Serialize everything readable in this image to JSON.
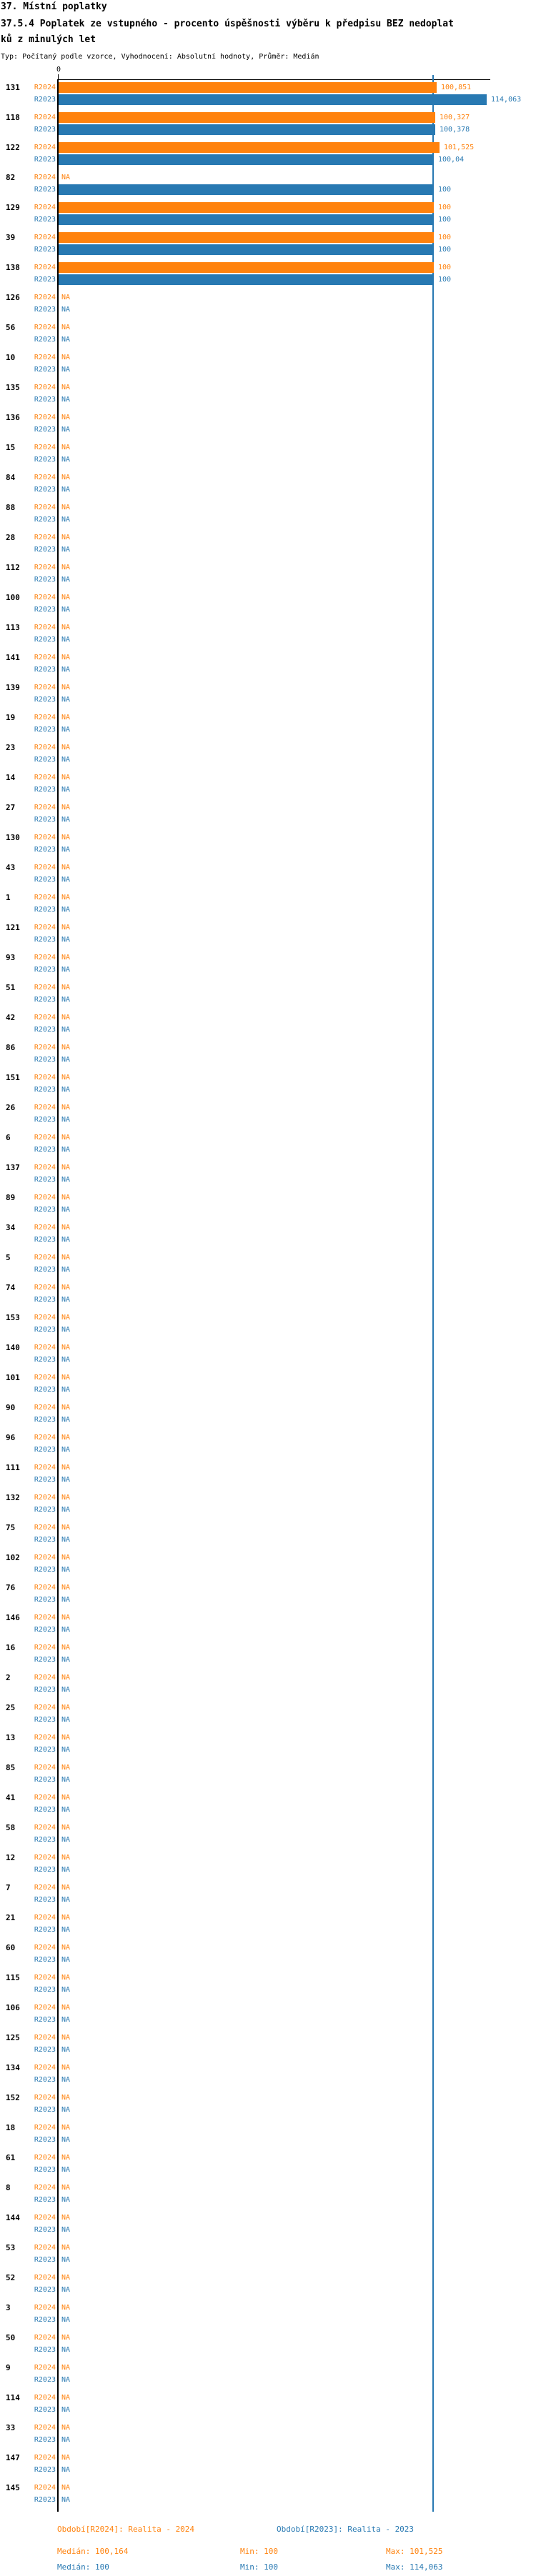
{
  "header": {
    "title_line1": "37. Místní poplatky",
    "title_line2": "37.5.4 Poplatek ze vstupného - procento úspěšnosti výběru k předpisu BEZ nedoplat",
    "title_line3": "ků z minulých let",
    "subtitle": "Typ: Počítaný podle vzorce, Vyhodnocení: Absolutní hodnoty, Průměr: Medián"
  },
  "colors": {
    "r2024": "#ff820d",
    "r2023": "#2879b2",
    "axis": "#000000",
    "reference_line": "#2879b2"
  },
  "chart_data": {
    "type": "bar",
    "orientation": "horizontal",
    "title": "37.5.4 Poplatek ze vstupného - procento úspěšnosti výběru k předpisu BEZ nedoplatků z minulých let",
    "xlabel": "",
    "ylabel": "",
    "x_axis": {
      "zero_label": "0",
      "min": 0,
      "reference_line_value": 100,
      "max_value_shown": 114.063,
      "grid": false
    },
    "na_label": "NA",
    "categories": [
      "131",
      "118",
      "122",
      "82",
      "129",
      "39",
      "138",
      "126",
      "56",
      "10",
      "135",
      "136",
      "15",
      "84",
      "88",
      "28",
      "112",
      "100",
      "113",
      "141",
      "139",
      "19",
      "23",
      "14",
      "27",
      "130",
      "43",
      "1",
      "121",
      "93",
      "51",
      "42",
      "86",
      "151",
      "26",
      "6",
      "137",
      "89",
      "34",
      "5",
      "74",
      "153",
      "140",
      "101",
      "90",
      "96",
      "111",
      "132",
      "75",
      "102",
      "76",
      "146",
      "16",
      "2",
      "25",
      "13",
      "85",
      "41",
      "58",
      "12",
      "7",
      "21",
      "60",
      "115",
      "106",
      "125",
      "134",
      "152",
      "18",
      "61",
      "8",
      "144",
      "53",
      "52",
      "3",
      "50",
      "9",
      "114",
      "33",
      "147",
      "145"
    ],
    "series": [
      {
        "name": "R2024",
        "color": "#ff820d",
        "values": [
          100.851,
          100.327,
          101.525,
          null,
          100,
          100,
          100
        ],
        "value_labels": [
          "100,851",
          "100,327",
          "101,525",
          "NA",
          "100",
          "100",
          "100"
        ]
      },
      {
        "name": "R2023",
        "color": "#2879b2",
        "values": [
          114.063,
          100.378,
          100.04,
          100,
          100,
          100,
          100
        ],
        "value_labels": [
          "114,063",
          "100,378",
          "100,04",
          "100",
          "100",
          "100",
          "100"
        ]
      }
    ],
    "note": "all categories after the listed values are NA for both series"
  },
  "legend": {
    "r2024": "Období[R2024]: Realita - 2024",
    "r2023": "Období[R2023]: Realita - 2023"
  },
  "stats": {
    "r2024": {
      "median": "Medián: 100,164",
      "min": "Min: 100",
      "max": "Max: 101,525"
    },
    "r2023": {
      "median": "Medián: 100",
      "min": "Min: 100",
      "max": "Max: 114,063"
    }
  }
}
